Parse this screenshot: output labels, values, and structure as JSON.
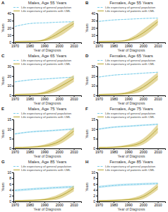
{
  "chart_data": [
    {
      "type": "line",
      "title": "Males, Age 55 Years",
      "annotations": [
        "A"
      ],
      "xlabel": "Year of Diagnosis",
      "ylabel": "Years",
      "x": [
        1970,
        1980,
        1990,
        2000,
        2010
      ],
      "xlim": [
        1969,
        2015
      ],
      "xticks": [
        1970,
        1980,
        1990,
        2000,
        2010
      ],
      "ylim": [
        0,
        40
      ],
      "yticks": [
        0,
        10,
        20,
        30,
        40
      ],
      "grid": false,
      "legend": "upper left",
      "series": [
        {
          "type": "area",
          "color": "#a8ddf0",
          "low": [
            21.6,
            25.6,
            26.6,
            27.6,
            28.1
          ],
          "high": [
            22.4,
            26.4,
            27.4,
            28.4,
            28.9
          ]
        },
        {
          "type": "line",
          "name": "Life expectancy of general population",
          "color": "#7ecfea",
          "line_style": "dashed",
          "values": [
            22,
            26,
            27,
            28,
            28.5
          ]
        },
        {
          "type": "area",
          "color": "#d4c060",
          "low": [
            0.3,
            0.5,
            1.5,
            8,
            22
          ],
          "high": [
            2.0,
            2.5,
            5.0,
            18,
            30
          ]
        },
        {
          "type": "line",
          "name": "Life expectancy of patients with CML",
          "color": "#b8a832",
          "line_style": "solid",
          "values": [
            1.15,
            1.5,
            3.25,
            13,
            26
          ]
        }
      ]
    },
    {
      "type": "line",
      "title": "Females, Age 55 Years",
      "annotations": [
        "B"
      ],
      "xlabel": "Year of Diagnosis",
      "ylabel": "Years",
      "x": [
        1970,
        1980,
        1990,
        2000,
        2010
      ],
      "xlim": [
        1969,
        2015
      ],
      "xticks": [
        1970,
        1980,
        1990,
        2000,
        2010
      ],
      "ylim": [
        0,
        40
      ],
      "yticks": [
        0,
        10,
        20,
        30,
        40
      ],
      "grid": false,
      "legend": "upper left",
      "series": [
        {
          "type": "area",
          "color": "#a8ddf0",
          "low": [
            28.6,
            30.6,
            31.6,
            32.6,
            33.1
          ],
          "high": [
            29.4,
            31.4,
            32.4,
            33.4,
            33.9
          ]
        },
        {
          "type": "line",
          "name": "Life expectancy of general population",
          "color": "#7ecfea",
          "line_style": "dashed",
          "values": [
            29,
            31,
            32,
            33,
            33.5
          ]
        },
        {
          "type": "area",
          "color": "#d4c060",
          "low": [
            0.3,
            0.5,
            1.5,
            8,
            24
          ],
          "high": [
            2.0,
            2.5,
            5.0,
            18,
            33
          ]
        },
        {
          "type": "line",
          "name": "Life expectancy of patients with CML",
          "color": "#b8a832",
          "line_style": "solid",
          "values": [
            1.15,
            1.5,
            3.25,
            13,
            28.5
          ]
        }
      ]
    },
    {
      "type": "line",
      "title": "Males, Age 65 Years",
      "annotations": [
        "C"
      ],
      "xlabel": "Year of Diagnosis",
      "ylabel": "Years",
      "x": [
        1970,
        1980,
        1990,
        2000,
        2010
      ],
      "xlim": [
        1969,
        2015
      ],
      "xticks": [
        1970,
        1980,
        1990,
        2000,
        2010
      ],
      "ylim": [
        0,
        30
      ],
      "yticks": [
        0,
        10,
        20,
        30
      ],
      "grid": false,
      "legend": "upper left",
      "series": [
        {
          "type": "area",
          "color": "#a8ddf0",
          "low": [
            13.6,
            15.6,
            16.6,
            17.6,
            18.6
          ],
          "high": [
            14.4,
            16.4,
            17.4,
            18.4,
            19.4
          ]
        },
        {
          "type": "line",
          "name": "Life expectancy of general population",
          "color": "#7ecfea",
          "line_style": "dashed",
          "values": [
            14,
            16,
            17,
            18,
            19
          ]
        },
        {
          "type": "area",
          "color": "#d4c060",
          "low": [
            0.3,
            0.4,
            1.0,
            5,
            14
          ],
          "high": [
            1.5,
            2.0,
            4.0,
            12,
            21
          ]
        },
        {
          "type": "line",
          "name": "Life expectancy of patients with CML",
          "color": "#b8a832",
          "line_style": "solid",
          "values": [
            0.9,
            1.2,
            2.5,
            8.5,
            17.5
          ]
        }
      ]
    },
    {
      "type": "line",
      "title": "Females, Age 65 Years",
      "annotations": [
        "D"
      ],
      "xlabel": "Year of Diagnosis",
      "ylabel": "Years",
      "x": [
        1970,
        1980,
        1990,
        2000,
        2010
      ],
      "xlim": [
        1969,
        2015
      ],
      "xticks": [
        1970,
        1980,
        1990,
        2000,
        2010
      ],
      "ylim": [
        0,
        30
      ],
      "yticks": [
        0,
        10,
        20,
        30
      ],
      "grid": false,
      "legend": "upper left",
      "series": [
        {
          "type": "area",
          "color": "#a8ddf0",
          "low": [
            18.6,
            20.6,
            21.6,
            22.6,
            23.6
          ],
          "high": [
            19.4,
            21.4,
            22.4,
            23.4,
            24.4
          ]
        },
        {
          "type": "line",
          "name": "Life expectancy of general population",
          "color": "#7ecfea",
          "line_style": "dashed",
          "values": [
            19,
            21,
            22,
            23,
            24
          ]
        },
        {
          "type": "area",
          "color": "#d4c060",
          "low": [
            0.3,
            0.4,
            1.0,
            5,
            16
          ],
          "high": [
            1.5,
            2.0,
            4.0,
            12,
            24
          ]
        },
        {
          "type": "line",
          "name": "Life expectancy of patients with CML",
          "color": "#b8a832",
          "line_style": "solid",
          "values": [
            0.9,
            1.2,
            2.5,
            8.5,
            20
          ]
        }
      ]
    },
    {
      "type": "line",
      "title": "Males, Age 75 Years",
      "annotations": [
        "E"
      ],
      "xlabel": "Year of Diagnosis",
      "ylabel": "Years",
      "x": [
        1970,
        1980,
        1990,
        2000,
        2010
      ],
      "xlim": [
        1969,
        2015
      ],
      "xticks": [
        1970,
        1980,
        1990,
        2000,
        2010
      ],
      "ylim": [
        0,
        15
      ],
      "yticks": [
        0,
        5,
        10,
        15
      ],
      "grid": false,
      "legend": "upper left",
      "series": [
        {
          "type": "area",
          "color": "#a8ddf0",
          "low": [
            7.1,
            8.1,
            8.6,
            9.1,
            9.6
          ],
          "high": [
            7.9,
            8.9,
            9.4,
            9.9,
            10.4
          ]
        },
        {
          "type": "line",
          "name": "Life expectancy of general population",
          "color": "#7ecfea",
          "line_style": "dashed",
          "values": [
            7.5,
            8.5,
            9.0,
            9.5,
            10.0
          ]
        },
        {
          "type": "area",
          "color": "#d4c060",
          "low": [
            0.1,
            0.2,
            0.5,
            2.0,
            7.0
          ],
          "high": [
            0.8,
            1.0,
            2.0,
            5.0,
            11.0
          ]
        },
        {
          "type": "line",
          "name": "Life expectancy of patients with CML",
          "color": "#b8a832",
          "line_style": "solid",
          "values": [
            0.45,
            0.6,
            1.25,
            3.5,
            9
          ]
        }
      ]
    },
    {
      "type": "line",
      "title": "Females, Age 75 Years",
      "annotations": [
        "F"
      ],
      "xlabel": "Year of Diagnosis",
      "ylabel": "Years",
      "x": [
        1970,
        1980,
        1990,
        2000,
        2010
      ],
      "xlim": [
        1969,
        2015
      ],
      "xticks": [
        1970,
        1980,
        1990,
        2000,
        2010
      ],
      "ylim": [
        0,
        15
      ],
      "yticks": [
        0,
        5,
        10,
        15
      ],
      "grid": false,
      "legend": "upper left",
      "series": [
        {
          "type": "area",
          "color": "#a8ddf0",
          "low": [
            9.6,
            10.6,
            11.1,
            11.6,
            12.1
          ],
          "high": [
            10.4,
            11.4,
            11.9,
            12.4,
            12.9
          ]
        },
        {
          "type": "line",
          "name": "Life expectancy of general population",
          "color": "#7ecfea",
          "line_style": "dashed",
          "values": [
            10.0,
            11.0,
            11.5,
            12.0,
            12.5
          ]
        },
        {
          "type": "area",
          "color": "#d4c060",
          "low": [
            0.1,
            0.2,
            0.5,
            2.0,
            8.0
          ],
          "high": [
            0.8,
            1.0,
            2.0,
            5.0,
            12.5
          ]
        },
        {
          "type": "line",
          "name": "Life expectancy of patients with CML",
          "color": "#b8a832",
          "line_style": "solid",
          "values": [
            0.45,
            0.6,
            1.25,
            3.5,
            10.25
          ]
        }
      ]
    },
    {
      "type": "line",
      "title": "Males, Age 85 Years",
      "annotations": [
        "G"
      ],
      "xlabel": "Year of Diagnosis",
      "ylabel": "Years",
      "x": [
        1970,
        1980,
        1990,
        2000,
        2010
      ],
      "xlim": [
        1969,
        2015
      ],
      "xticks": [
        1970,
        1980,
        1990,
        2000,
        2010
      ],
      "ylim": [
        0,
        10
      ],
      "yticks": [
        0,
        2,
        4,
        6,
        8,
        10
      ],
      "grid": false,
      "legend": "upper left",
      "series": [
        {
          "type": "area",
          "color": "#a8ddf0",
          "low": [
            3.4,
            3.8,
            4.1,
            4.4,
            4.6
          ],
          "high": [
            4.2,
            4.6,
            4.9,
            5.2,
            5.4
          ]
        },
        {
          "type": "line",
          "name": "Life expectancy of general population",
          "color": "#7ecfea",
          "line_style": "dashed",
          "values": [
            3.8,
            4.2,
            4.5,
            4.8,
            5.0
          ]
        },
        {
          "type": "area",
          "color": "#d4c060",
          "low": [
            0.05,
            0.08,
            0.2,
            0.8,
            3.5
          ],
          "high": [
            0.4,
            0.6,
            1.0,
            2.5,
            5.5
          ]
        },
        {
          "type": "line",
          "name": "Life expectancy of patients with CML",
          "color": "#b8a832",
          "line_style": "solid",
          "values": [
            0.225,
            0.34,
            0.6,
            1.65,
            4.5
          ]
        }
      ]
    },
    {
      "type": "line",
      "title": "Females, Age 85 Years",
      "annotations": [
        "H"
      ],
      "xlabel": "Year of Diagnosis",
      "ylabel": "Years",
      "x": [
        1970,
        1980,
        1990,
        2000,
        2010
      ],
      "xlim": [
        1969,
        2015
      ],
      "xticks": [
        1970,
        1980,
        1990,
        2000,
        2010
      ],
      "ylim": [
        0,
        10
      ],
      "yticks": [
        0,
        2,
        4,
        6,
        8,
        10
      ],
      "grid": false,
      "legend": "upper left",
      "series": [
        {
          "type": "area",
          "color": "#a8ddf0",
          "low": [
            4.6,
            5.1,
            5.4,
            5.6,
            5.8
          ],
          "high": [
            5.4,
            5.9,
            6.2,
            6.4,
            6.6
          ]
        },
        {
          "type": "line",
          "name": "Life expectancy of general population",
          "color": "#7ecfea",
          "line_style": "dashed",
          "values": [
            5.0,
            5.5,
            5.8,
            6.0,
            6.2
          ]
        },
        {
          "type": "area",
          "color": "#d4c060",
          "low": [
            0.05,
            0.08,
            0.2,
            0.8,
            4.0
          ],
          "high": [
            0.4,
            0.6,
            1.0,
            2.5,
            6.2
          ]
        },
        {
          "type": "line",
          "name": "Life expectancy of patients with CML",
          "color": "#b8a832",
          "line_style": "solid",
          "values": [
            0.225,
            0.34,
            0.6,
            1.65,
            5.1
          ]
        }
      ]
    }
  ]
}
